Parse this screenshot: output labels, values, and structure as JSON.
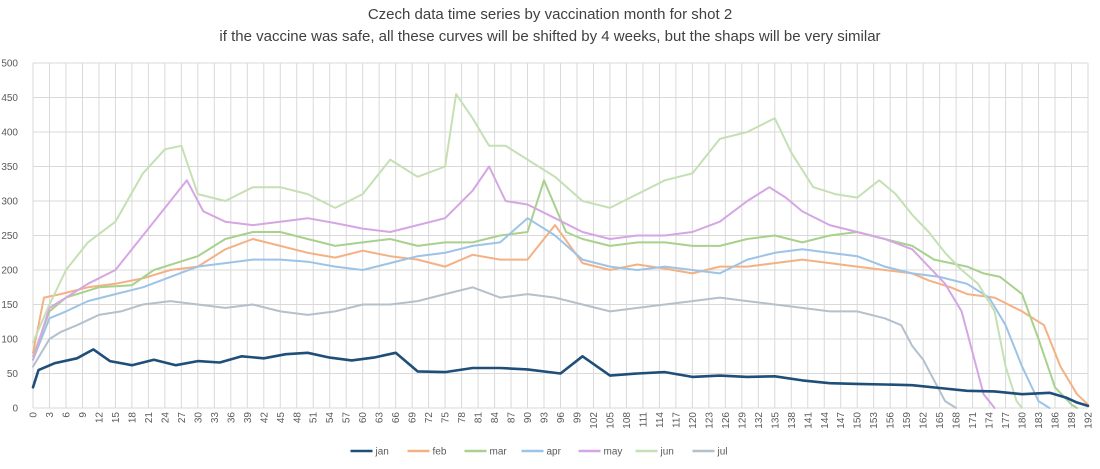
{
  "chart_data": {
    "type": "line",
    "title": "Czech data time series by vaccination month for shot 2",
    "subtitle": "if the vaccine was safe, all these curves will be shifted by 4 weeks, but the shaps will be very similar",
    "xlabel": "",
    "ylabel": "",
    "xlim": [
      0,
      192
    ],
    "ylim": [
      0,
      500
    ],
    "y_ticks": [
      0,
      50,
      100,
      150,
      200,
      250,
      300,
      350,
      400,
      450,
      500
    ],
    "x_tick_step": 3,
    "grid": true,
    "legend_position": "bottom",
    "series": [
      {
        "name": "jan",
        "color": "#1f4e79",
        "highlight": true,
        "points": [
          [
            0,
            30
          ],
          [
            1,
            55
          ],
          [
            4,
            65
          ],
          [
            8,
            72
          ],
          [
            11,
            85
          ],
          [
            14,
            68
          ],
          [
            18,
            62
          ],
          [
            22,
            70
          ],
          [
            26,
            62
          ],
          [
            30,
            68
          ],
          [
            34,
            66
          ],
          [
            38,
            75
          ],
          [
            42,
            72
          ],
          [
            46,
            78
          ],
          [
            50,
            80
          ],
          [
            54,
            73
          ],
          [
            58,
            69
          ],
          [
            62,
            73
          ],
          [
            66,
            80
          ],
          [
            70,
            53
          ],
          [
            75,
            52
          ],
          [
            80,
            58
          ],
          [
            85,
            58
          ],
          [
            90,
            56
          ],
          [
            96,
            50
          ],
          [
            100,
            75
          ],
          [
            105,
            47
          ],
          [
            110,
            50
          ],
          [
            115,
            52
          ],
          [
            120,
            45
          ],
          [
            125,
            47
          ],
          [
            130,
            45
          ],
          [
            135,
            46
          ],
          [
            140,
            40
          ],
          [
            145,
            36
          ],
          [
            150,
            35
          ],
          [
            155,
            34
          ],
          [
            160,
            33
          ],
          [
            165,
            29
          ],
          [
            170,
            25
          ],
          [
            175,
            24
          ],
          [
            180,
            20
          ],
          [
            185,
            22
          ],
          [
            188,
            15
          ],
          [
            190,
            8
          ],
          [
            192,
            3
          ]
        ]
      },
      {
        "name": "feb",
        "color": "#f4b183",
        "highlight": false,
        "points": [
          [
            0,
            80
          ],
          [
            2,
            160
          ],
          [
            5,
            165
          ],
          [
            10,
            175
          ],
          [
            15,
            180
          ],
          [
            20,
            188
          ],
          [
            25,
            200
          ],
          [
            30,
            205
          ],
          [
            35,
            230
          ],
          [
            40,
            245
          ],
          [
            45,
            235
          ],
          [
            50,
            225
          ],
          [
            55,
            218
          ],
          [
            60,
            228
          ],
          [
            65,
            220
          ],
          [
            70,
            215
          ],
          [
            75,
            205
          ],
          [
            80,
            222
          ],
          [
            85,
            215
          ],
          [
            90,
            215
          ],
          [
            95,
            265
          ],
          [
            100,
            210
          ],
          [
            105,
            200
          ],
          [
            110,
            208
          ],
          [
            115,
            202
          ],
          [
            120,
            195
          ],
          [
            125,
            205
          ],
          [
            130,
            205
          ],
          [
            135,
            210
          ],
          [
            140,
            215
          ],
          [
            145,
            210
          ],
          [
            150,
            205
          ],
          [
            155,
            200
          ],
          [
            160,
            195
          ],
          [
            163,
            185
          ],
          [
            167,
            175
          ],
          [
            170,
            165
          ],
          [
            175,
            160
          ],
          [
            180,
            140
          ],
          [
            184,
            120
          ],
          [
            187,
            60
          ],
          [
            190,
            20
          ],
          [
            192,
            5
          ]
        ]
      },
      {
        "name": "mar",
        "color": "#a9d18e",
        "highlight": false,
        "points": [
          [
            0,
            75
          ],
          [
            3,
            140
          ],
          [
            6,
            160
          ],
          [
            12,
            175
          ],
          [
            18,
            178
          ],
          [
            22,
            200
          ],
          [
            26,
            210
          ],
          [
            30,
            220
          ],
          [
            35,
            245
          ],
          [
            40,
            255
          ],
          [
            45,
            255
          ],
          [
            50,
            245
          ],
          [
            55,
            235
          ],
          [
            60,
            240
          ],
          [
            65,
            245
          ],
          [
            70,
            235
          ],
          [
            75,
            240
          ],
          [
            80,
            240
          ],
          [
            85,
            250
          ],
          [
            90,
            255
          ],
          [
            93,
            330
          ],
          [
            97,
            255
          ],
          [
            100,
            245
          ],
          [
            105,
            235
          ],
          [
            110,
            240
          ],
          [
            115,
            240
          ],
          [
            120,
            235
          ],
          [
            125,
            235
          ],
          [
            130,
            245
          ],
          [
            135,
            250
          ],
          [
            140,
            240
          ],
          [
            145,
            250
          ],
          [
            150,
            255
          ],
          [
            155,
            245
          ],
          [
            160,
            235
          ],
          [
            164,
            215
          ],
          [
            167,
            210
          ],
          [
            170,
            205
          ],
          [
            173,
            195
          ],
          [
            176,
            190
          ],
          [
            180,
            165
          ],
          [
            183,
            100
          ],
          [
            186,
            30
          ],
          [
            189,
            5
          ],
          [
            190,
            0
          ]
        ]
      },
      {
        "name": "apr",
        "color": "#9dc3e6",
        "highlight": false,
        "points": [
          [
            0,
            70
          ],
          [
            3,
            130
          ],
          [
            6,
            140
          ],
          [
            10,
            155
          ],
          [
            15,
            165
          ],
          [
            20,
            175
          ],
          [
            25,
            190
          ],
          [
            30,
            205
          ],
          [
            35,
            210
          ],
          [
            40,
            215
          ],
          [
            45,
            215
          ],
          [
            50,
            212
          ],
          [
            55,
            205
          ],
          [
            60,
            200
          ],
          [
            65,
            210
          ],
          [
            70,
            220
          ],
          [
            75,
            225
          ],
          [
            80,
            235
          ],
          [
            85,
            240
          ],
          [
            90,
            275
          ],
          [
            95,
            250
          ],
          [
            100,
            215
          ],
          [
            105,
            205
          ],
          [
            110,
            200
          ],
          [
            115,
            205
          ],
          [
            120,
            200
          ],
          [
            125,
            195
          ],
          [
            130,
            215
          ],
          [
            135,
            225
          ],
          [
            140,
            230
          ],
          [
            145,
            225
          ],
          [
            150,
            220
          ],
          [
            155,
            205
          ],
          [
            160,
            195
          ],
          [
            165,
            190
          ],
          [
            170,
            180
          ],
          [
            174,
            160
          ],
          [
            177,
            120
          ],
          [
            180,
            60
          ],
          [
            183,
            10
          ],
          [
            185,
            0
          ]
        ]
      },
      {
        "name": "may",
        "color": "#d5a6e3",
        "highlight": false,
        "points": [
          [
            0,
            70
          ],
          [
            3,
            145
          ],
          [
            6,
            160
          ],
          [
            10,
            180
          ],
          [
            15,
            200
          ],
          [
            18,
            230
          ],
          [
            22,
            270
          ],
          [
            25,
            300
          ],
          [
            28,
            330
          ],
          [
            31,
            285
          ],
          [
            35,
            270
          ],
          [
            40,
            265
          ],
          [
            45,
            270
          ],
          [
            50,
            275
          ],
          [
            55,
            268
          ],
          [
            60,
            260
          ],
          [
            65,
            255
          ],
          [
            70,
            265
          ],
          [
            75,
            275
          ],
          [
            80,
            315
          ],
          [
            83,
            350
          ],
          [
            86,
            300
          ],
          [
            90,
            295
          ],
          [
            95,
            275
          ],
          [
            100,
            255
          ],
          [
            105,
            245
          ],
          [
            110,
            250
          ],
          [
            115,
            250
          ],
          [
            120,
            255
          ],
          [
            125,
            270
          ],
          [
            130,
            300
          ],
          [
            134,
            320
          ],
          [
            137,
            305
          ],
          [
            140,
            285
          ],
          [
            145,
            265
          ],
          [
            150,
            255
          ],
          [
            155,
            245
          ],
          [
            160,
            230
          ],
          [
            163,
            205
          ],
          [
            166,
            180
          ],
          [
            169,
            140
          ],
          [
            171,
            80
          ],
          [
            173,
            20
          ],
          [
            175,
            0
          ]
        ]
      },
      {
        "name": "jun",
        "color": "#c5e0b4",
        "highlight": false,
        "points": [
          [
            0,
            95
          ],
          [
            3,
            150
          ],
          [
            6,
            200
          ],
          [
            10,
            240
          ],
          [
            15,
            270
          ],
          [
            20,
            340
          ],
          [
            24,
            375
          ],
          [
            27,
            380
          ],
          [
            30,
            310
          ],
          [
            35,
            300
          ],
          [
            40,
            320
          ],
          [
            45,
            320
          ],
          [
            50,
            310
          ],
          [
            55,
            290
          ],
          [
            60,
            310
          ],
          [
            65,
            360
          ],
          [
            70,
            335
          ],
          [
            75,
            350
          ],
          [
            77,
            455
          ],
          [
            80,
            420
          ],
          [
            83,
            380
          ],
          [
            86,
            380
          ],
          [
            90,
            360
          ],
          [
            95,
            335
          ],
          [
            100,
            300
          ],
          [
            105,
            290
          ],
          [
            110,
            310
          ],
          [
            115,
            330
          ],
          [
            120,
            340
          ],
          [
            125,
            390
          ],
          [
            130,
            400
          ],
          [
            135,
            420
          ],
          [
            138,
            370
          ],
          [
            142,
            320
          ],
          [
            146,
            310
          ],
          [
            150,
            305
          ],
          [
            154,
            330
          ],
          [
            157,
            310
          ],
          [
            160,
            280
          ],
          [
            163,
            255
          ],
          [
            166,
            225
          ],
          [
            169,
            200
          ],
          [
            172,
            180
          ],
          [
            175,
            140
          ],
          [
            177,
            60
          ],
          [
            179,
            10
          ],
          [
            180,
            0
          ]
        ]
      },
      {
        "name": "jul",
        "color": "#b4c0cc",
        "highlight": false,
        "points": [
          [
            0,
            60
          ],
          [
            3,
            100
          ],
          [
            5,
            110
          ],
          [
            8,
            120
          ],
          [
            12,
            135
          ],
          [
            16,
            140
          ],
          [
            20,
            150
          ],
          [
            25,
            155
          ],
          [
            30,
            150
          ],
          [
            35,
            145
          ],
          [
            40,
            150
          ],
          [
            45,
            140
          ],
          [
            50,
            135
          ],
          [
            55,
            140
          ],
          [
            60,
            150
          ],
          [
            65,
            150
          ],
          [
            70,
            155
          ],
          [
            75,
            165
          ],
          [
            80,
            175
          ],
          [
            85,
            160
          ],
          [
            90,
            165
          ],
          [
            95,
            160
          ],
          [
            100,
            150
          ],
          [
            105,
            140
          ],
          [
            110,
            145
          ],
          [
            115,
            150
          ],
          [
            120,
            155
          ],
          [
            125,
            160
          ],
          [
            130,
            155
          ],
          [
            135,
            150
          ],
          [
            140,
            145
          ],
          [
            145,
            140
          ],
          [
            150,
            140
          ],
          [
            155,
            130
          ],
          [
            158,
            120
          ],
          [
            160,
            90
          ],
          [
            162,
            70
          ],
          [
            164,
            40
          ],
          [
            166,
            10
          ],
          [
            168,
            0
          ]
        ]
      }
    ]
  }
}
